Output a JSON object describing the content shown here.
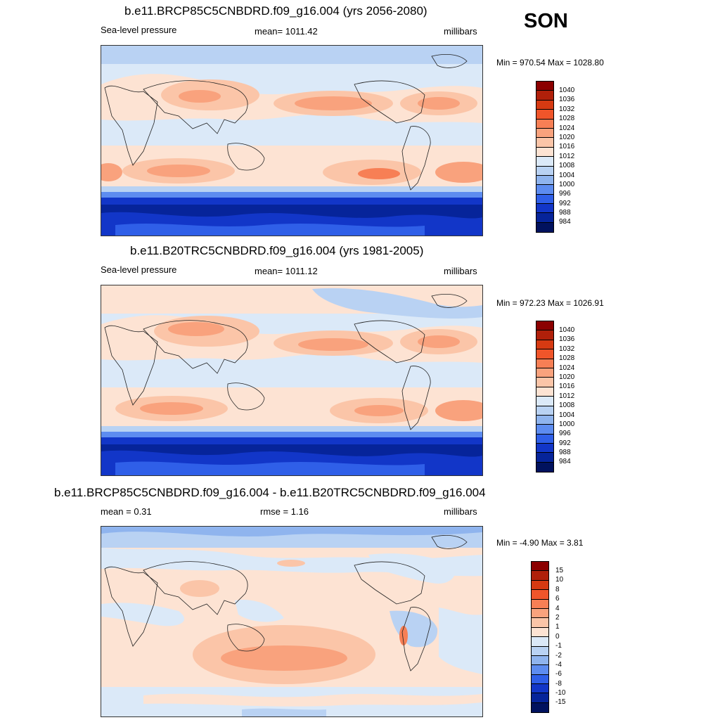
{
  "season": "SON",
  "panels": [
    {
      "title": "b.e11.BRCP85C5CNBDRD.f09_g16.004 (yrs 2056-2080)",
      "left_label": "Sea-level pressure",
      "center_label": "mean= 1011.42",
      "units": "millibars",
      "minmax": "Min = 970.54 Max = 1028.80",
      "colorbar": {
        "labels": [
          "1040",
          "1036",
          "1032",
          "1028",
          "1024",
          "1020",
          "1016",
          "1012",
          "1008",
          "1004",
          "1000",
          "996",
          "992",
          "988",
          "984"
        ],
        "colors": [
          "#8b0000",
          "#b0200a",
          "#d63a12",
          "#f0552a",
          "#f77f55",
          "#f9a27d",
          "#fbc5a8",
          "#fde3d3",
          "#dbe9f8",
          "#b9d2f3",
          "#8fb4ee",
          "#5d8cf0",
          "#2f5fe8",
          "#1236c8",
          "#06249a",
          "#01125e"
        ]
      }
    },
    {
      "title": "b.e11.B20TRC5CNBDRD.f09_g16.004 (yrs 1981-2005)",
      "left_label": "Sea-level pressure",
      "center_label": "mean= 1011.12",
      "units": "millibars",
      "minmax": "Min = 972.23 Max = 1026.91",
      "colorbar": {
        "labels": [
          "1040",
          "1036",
          "1032",
          "1028",
          "1024",
          "1020",
          "1016",
          "1012",
          "1008",
          "1004",
          "1000",
          "996",
          "992",
          "988",
          "984"
        ],
        "colors": [
          "#8b0000",
          "#b0200a",
          "#d63a12",
          "#f0552a",
          "#f77f55",
          "#f9a27d",
          "#fbc5a8",
          "#fde3d3",
          "#dbe9f8",
          "#b9d2f3",
          "#8fb4ee",
          "#5d8cf0",
          "#2f5fe8",
          "#1236c8",
          "#06249a",
          "#01125e"
        ]
      }
    },
    {
      "title": "b.e11.BRCP85C5CNBDRD.f09_g16.004 - b.e11.B20TRC5CNBDRD.f09_g16.004",
      "left_label": "mean =   0.31",
      "center_label": "rmse =   1.16",
      "units": "millibars",
      "minmax": "Min =  -4.90 Max =   3.81",
      "colorbar": {
        "labels": [
          "15",
          "10",
          "8",
          "6",
          "4",
          "2",
          "1",
          "0",
          "-1",
          "-2",
          "-4",
          "-6",
          "-8",
          "-10",
          "-15"
        ],
        "colors": [
          "#8b0000",
          "#b0200a",
          "#d63a12",
          "#f0552a",
          "#f77f55",
          "#f9a27d",
          "#fbc5a8",
          "#fde3d3",
          "#dbe9f8",
          "#b9d2f3",
          "#8fb4ee",
          "#5d8cf0",
          "#2f5fe8",
          "#1236c8",
          "#06249a",
          "#01125e"
        ]
      }
    }
  ]
}
